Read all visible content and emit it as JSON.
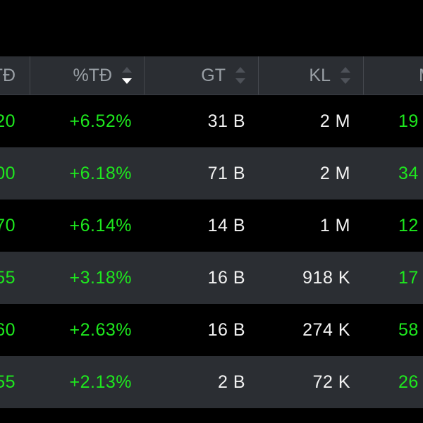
{
  "headers": {
    "td": "TĐ",
    "pct": "%TĐ",
    "gt": "GT",
    "kl": "KL",
    "m": "M"
  },
  "sort": {
    "active_column": "%TĐ",
    "direction": "descending"
  },
  "colors": {
    "positive": "#1ee81e",
    "text": "#f2f2f2",
    "header_bg": "#2b2e33",
    "row_alt_bg": "#2b2e33",
    "background": "#000000"
  },
  "rows": [
    {
      "td": "20",
      "pct": "+6.52%",
      "gt": "31 B",
      "kl": "2 M",
      "m": "19"
    },
    {
      "td": "00",
      "pct": "+6.18%",
      "gt": "71 B",
      "kl": "2 M",
      "m": "34"
    },
    {
      "td": "70",
      "pct": "+6.14%",
      "gt": "14 B",
      "kl": "1 M",
      "m": "12"
    },
    {
      "td": "55",
      "pct": "+3.18%",
      "gt": "16 B",
      "kl": "918 K",
      "m": "17"
    },
    {
      "td": "60",
      "pct": "+2.63%",
      "gt": "16 B",
      "kl": "274 K",
      "m": "58"
    },
    {
      "td": "55",
      "pct": "+2.13%",
      "gt": "2 B",
      "kl": "72 K",
      "m": "26"
    }
  ]
}
